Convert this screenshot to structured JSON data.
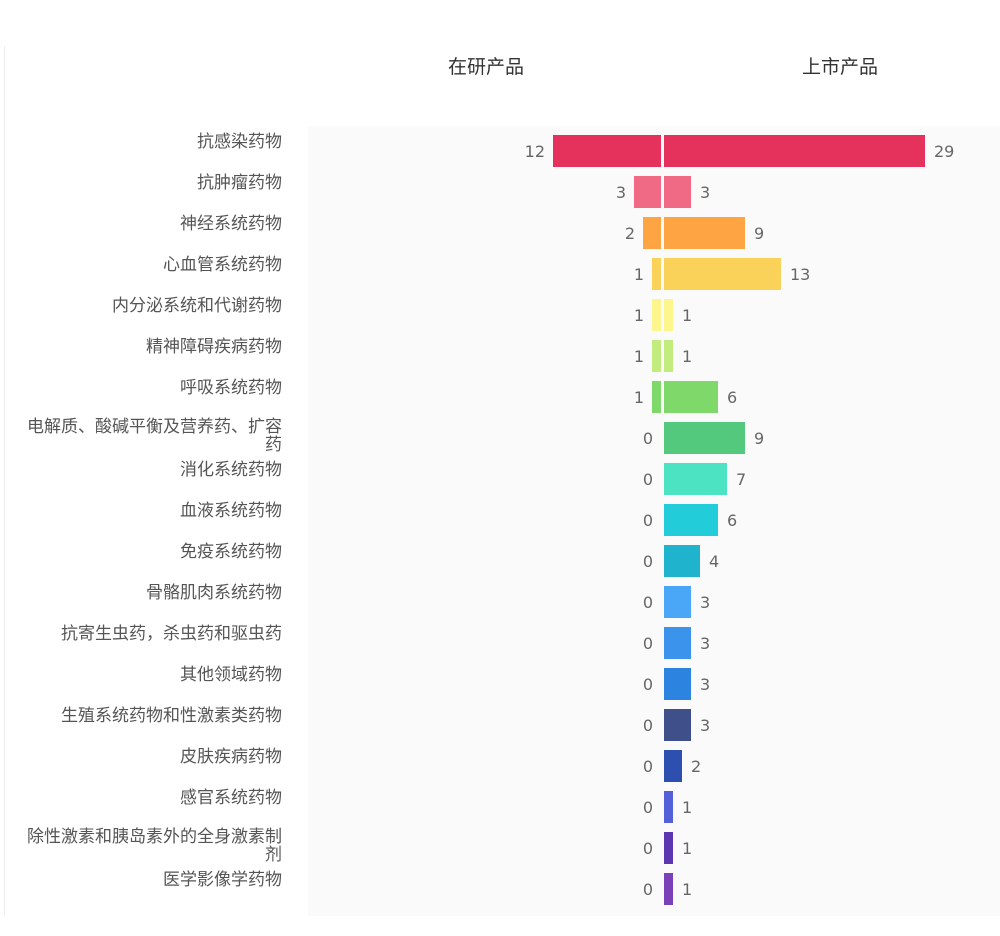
{
  "chart_data": {
    "type": "bar",
    "orientation": "horizontal-diverging",
    "headers": {
      "left": "在研产品",
      "right": "上市产品"
    },
    "categories": [
      "抗感染药物",
      "抗肿瘤药物",
      "神经系统药物",
      "心血管系统药物",
      "内分泌系统和代谢药物",
      "精神障碍疾病药物",
      "呼吸系统药物",
      "电解质、酸碱平衡及营养药、扩容药",
      "消化系统药物",
      "血液系统药物",
      "免疫系统药物",
      "骨骼肌肉系统药物",
      "抗寄生虫药，杀虫药和驱虫药",
      "其他领域药物",
      "生殖系统药物和性激素类药物",
      "皮肤疾病药物",
      "感官系统药物",
      "除性激素和胰岛素外的全身激素制剂",
      "医学影像学药物"
    ],
    "series": [
      {
        "name": "在研产品",
        "values": [
          12,
          3,
          2,
          1,
          1,
          1,
          1,
          0,
          0,
          0,
          0,
          0,
          0,
          0,
          0,
          0,
          0,
          0,
          0
        ]
      },
      {
        "name": "上市产品",
        "values": [
          29,
          3,
          9,
          13,
          1,
          1,
          6,
          9,
          7,
          6,
          4,
          3,
          3,
          3,
          3,
          2,
          1,
          1,
          1
        ]
      }
    ],
    "colors": [
      "#e5325d",
      "#f06a85",
      "#ffa443",
      "#fad259",
      "#fcf68c",
      "#c3ec7f",
      "#7fd96a",
      "#52c97c",
      "#4ce3c2",
      "#22cdd9",
      "#1fb3ce",
      "#4aa6f7",
      "#3b93ec",
      "#2d84e0",
      "#3f4f8a",
      "#2d50b0",
      "#5360d8",
      "#5e35b1",
      "#7b3fb8"
    ]
  }
}
